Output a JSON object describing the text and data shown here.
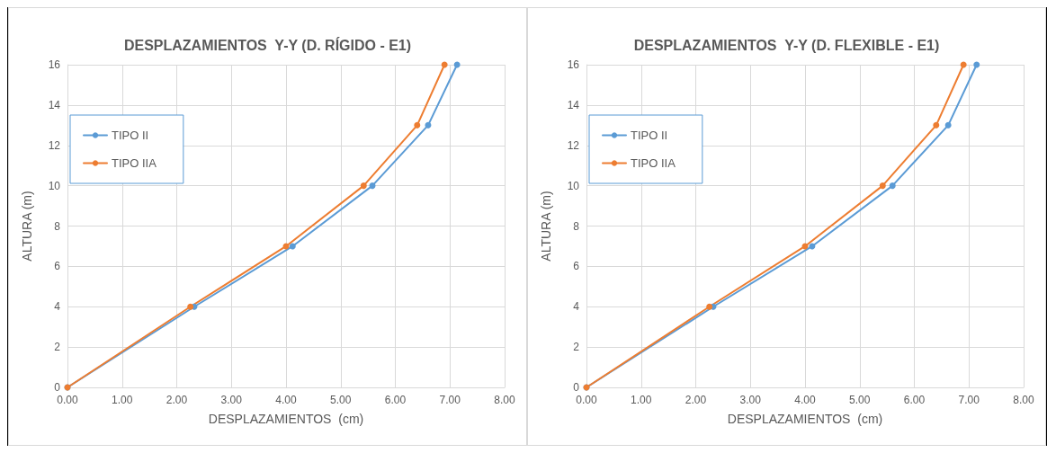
{
  "chart_data": [
    {
      "type": "line",
      "title": "DESPLAZAMIENTOS  Y-Y (D. RÍGIDO - E1)",
      "xlabel": "DESPLAZAMIENTOS  (cm)",
      "ylabel": "ALTURA (m)",
      "series": [
        {
          "name": "TIPO II",
          "color": "#5b9bd5",
          "x": [
            0,
            2.32,
            4.12,
            5.58,
            6.6,
            7.13
          ],
          "values": [
            0,
            4,
            7,
            10,
            13,
            16
          ]
        },
        {
          "name": "TIPO IIA",
          "color": "#ed7d31",
          "x": [
            0,
            2.25,
            4.0,
            5.42,
            6.4,
            6.9
          ],
          "values": [
            0,
            4,
            7,
            10,
            13,
            16
          ]
        }
      ],
      "xlim": [
        0,
        8
      ],
      "xticks": [
        {
          "value": 0,
          "label": "0.00"
        },
        {
          "value": 1,
          "label": "1.00"
        },
        {
          "value": 2,
          "label": "2.00"
        },
        {
          "value": 3,
          "label": "3.00"
        },
        {
          "value": 4,
          "label": "4.00"
        },
        {
          "value": 5,
          "label": "5.00"
        },
        {
          "value": 6,
          "label": "6.00"
        },
        {
          "value": 7,
          "label": "7.00"
        },
        {
          "value": 8,
          "label": "8.00"
        }
      ],
      "ylim": [
        0,
        16
      ],
      "yticks": [
        0,
        2,
        4,
        6,
        8,
        10,
        12,
        14,
        16
      ],
      "grid": true,
      "legend": "left",
      "marker": "circle",
      "line_style": "solid"
    },
    {
      "type": "line",
      "title": "DESPLAZAMIENTOS  Y-Y (D. FLEXIBLE - E1)",
      "xlabel": "DESPLAZAMIENTOS  (cm)",
      "ylabel": "ALTURA (m)",
      "series": [
        {
          "name": "TIPO II",
          "color": "#5b9bd5",
          "x": [
            0,
            2.32,
            4.13,
            5.6,
            6.62,
            7.14
          ],
          "values": [
            0,
            4,
            7,
            10,
            13,
            16
          ]
        },
        {
          "name": "TIPO IIA",
          "color": "#ed7d31",
          "x": [
            0,
            2.25,
            4.0,
            5.42,
            6.4,
            6.9
          ],
          "values": [
            0,
            4,
            7,
            10,
            13,
            16
          ]
        }
      ],
      "xlim": [
        0,
        8
      ],
      "xticks": [
        {
          "value": 0,
          "label": "0.00"
        },
        {
          "value": 1,
          "label": "1.00"
        },
        {
          "value": 2,
          "label": "2.00"
        },
        {
          "value": 3,
          "label": "3.00"
        },
        {
          "value": 4,
          "label": "4.00"
        },
        {
          "value": 5,
          "label": "5.00"
        },
        {
          "value": 6,
          "label": "6.00"
        },
        {
          "value": 7,
          "label": "7.00"
        },
        {
          "value": 8,
          "label": "8.00"
        }
      ],
      "ylim": [
        0,
        16
      ],
      "yticks": [
        0,
        2,
        4,
        6,
        8,
        10,
        12,
        14,
        16
      ],
      "grid": true,
      "legend": "left",
      "marker": "circle",
      "line_style": "solid"
    }
  ]
}
